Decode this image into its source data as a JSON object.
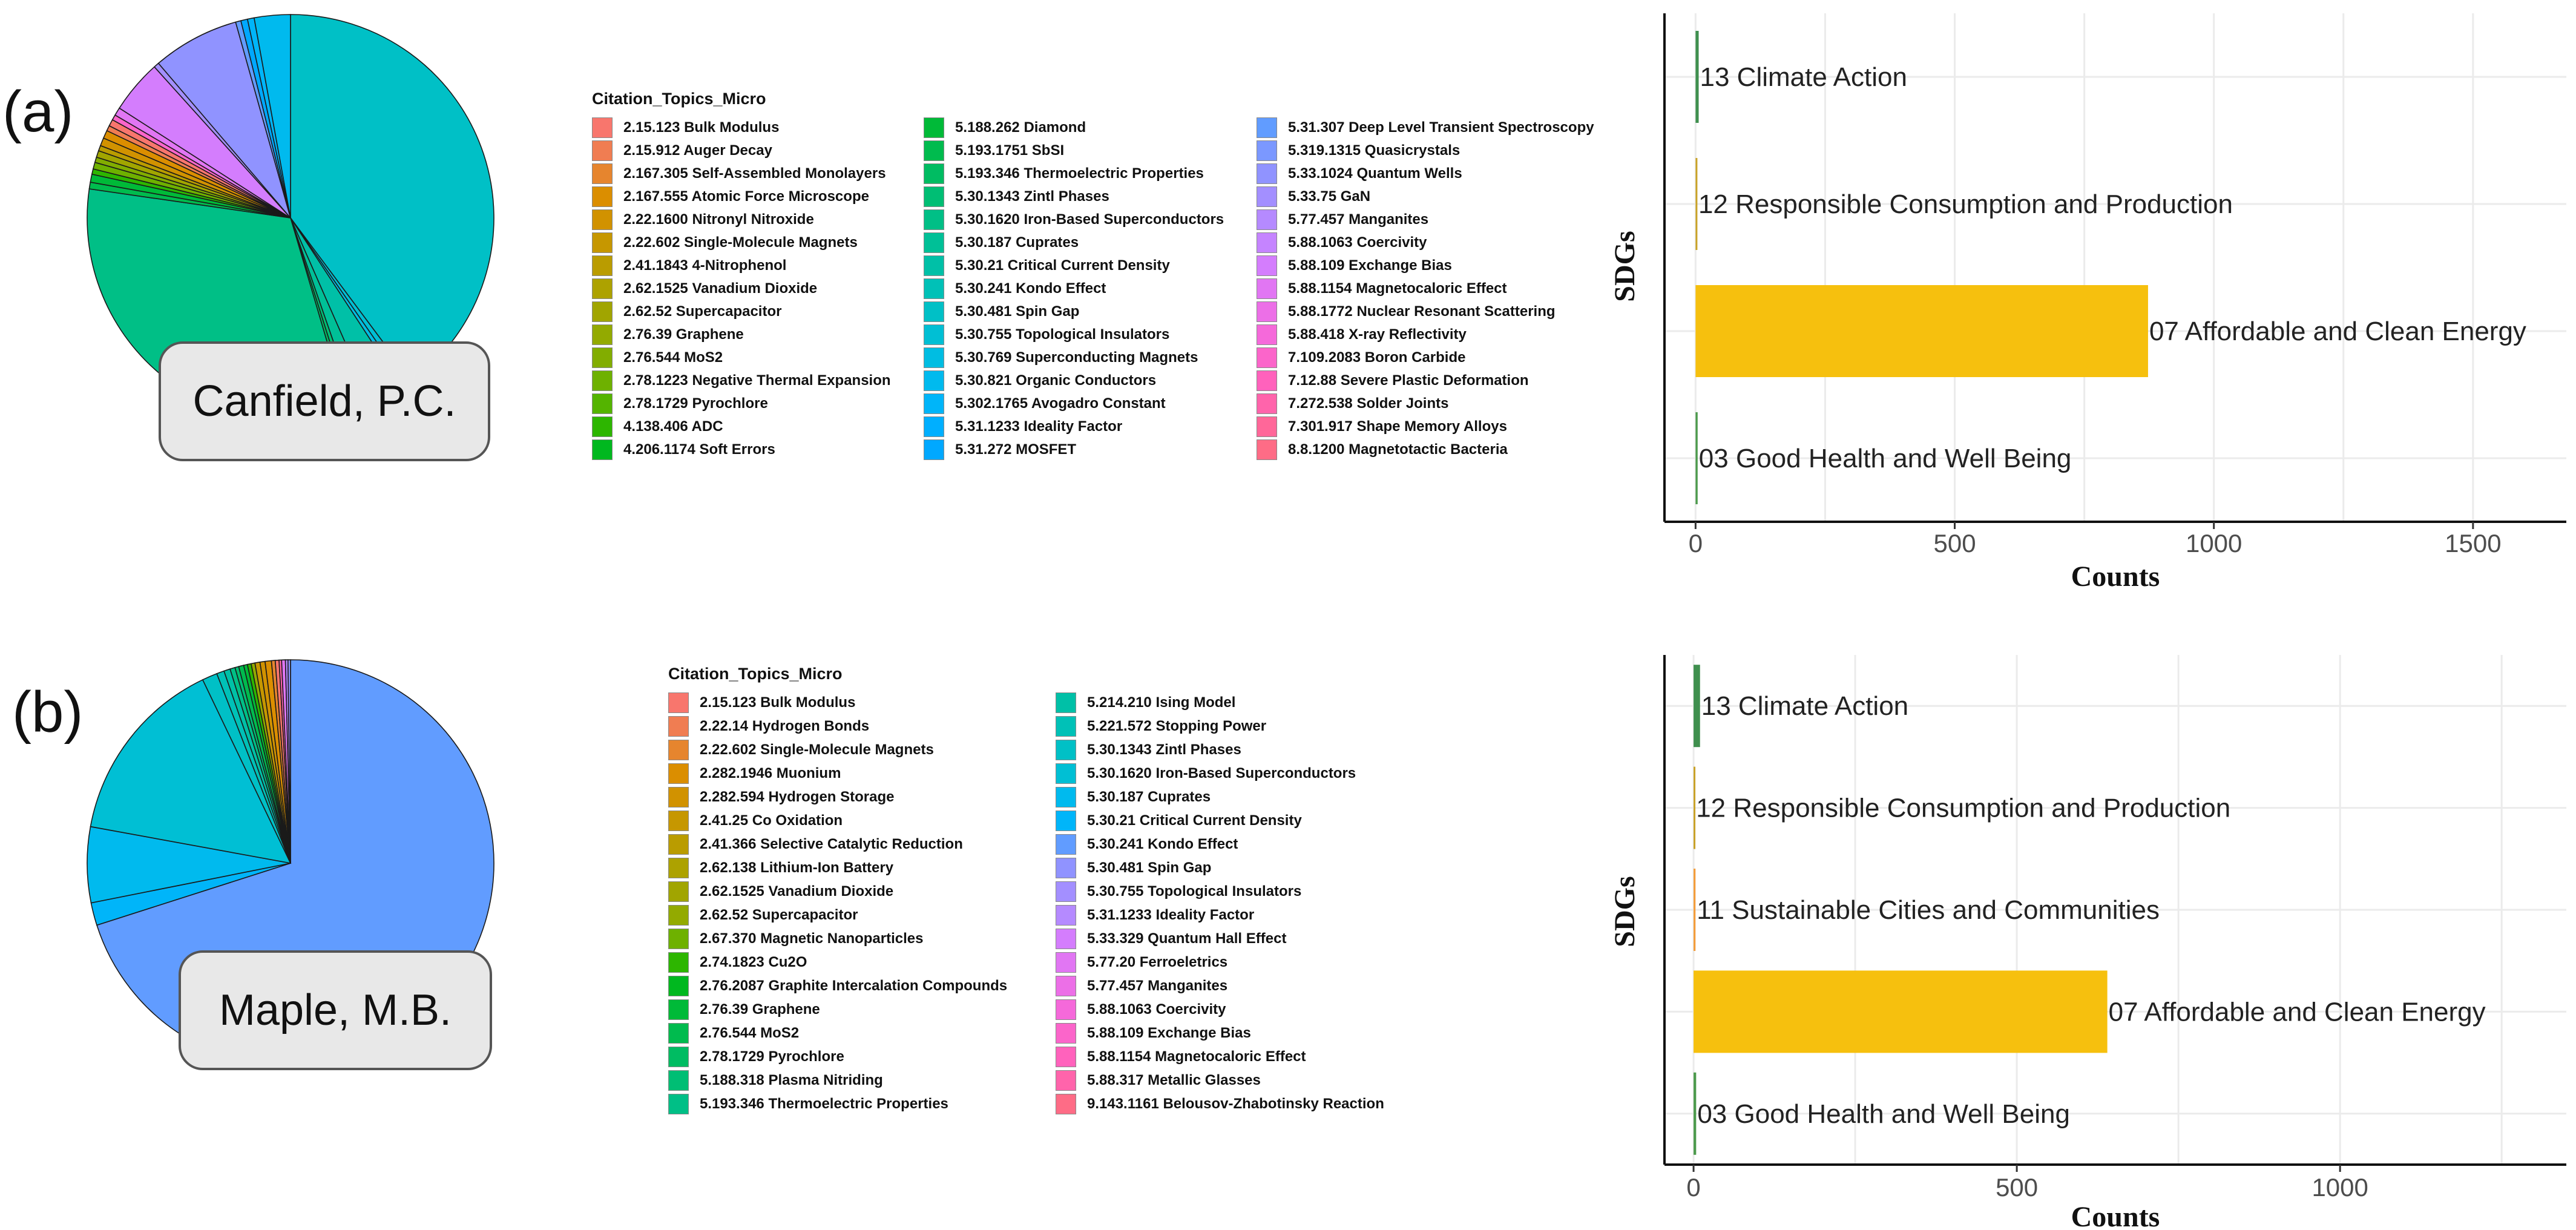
{
  "panels": [
    {
      "label": "(a)",
      "author": "Canfield, P.C.",
      "legend_title": "Citation_Topics_Micro",
      "legend_columns": [
        [
          {
            "label": "2.15.123 Bulk Modulus",
            "color": "#F8766D"
          },
          {
            "label": "2.15.912 Auger Decay",
            "color": "#F07D52"
          },
          {
            "label": "2.167.305 Self-Assembled Monolayers",
            "color": "#E6852E"
          },
          {
            "label": "2.167.555 Atomic Force Microscope",
            "color": "#DB8E00"
          },
          {
            "label": "2.22.1600 Nitronyl Nitroxide",
            "color": "#D19200"
          },
          {
            "label": "2.22.602 Single-Molecule Magnets",
            "color": "#C69700"
          },
          {
            "label": "2.41.1843 4-Nitrophenol",
            "color": "#BA9C00"
          },
          {
            "label": "2.62.1525 Vanadium Dioxide",
            "color": "#ADA200"
          },
          {
            "label": "2.62.52 Supercapacitor",
            "color": "#A1A500"
          },
          {
            "label": "2.76.39 Graphene",
            "color": "#93AA00"
          },
          {
            "label": "2.76.544 MoS2",
            "color": "#82AD00"
          },
          {
            "label": "2.78.1223 Negative Thermal Expansion",
            "color": "#6EB100"
          },
          {
            "label": "2.78.1729 Pyrochlore",
            "color": "#54B400"
          },
          {
            "label": "4.138.406 ADC",
            "color": "#2DB600"
          },
          {
            "label": "4.206.1174 Soft Errors",
            "color": "#00B81F"
          }
        ],
        [
          {
            "label": "5.188.262 Diamond",
            "color": "#00BA38"
          },
          {
            "label": "5.193.1751 SbSI",
            "color": "#00BB4E"
          },
          {
            "label": "5.193.346 Thermoelectric Properties",
            "color": "#00BC62"
          },
          {
            "label": "5.30.1343 Zintl Phases",
            "color": "#00BE74"
          },
          {
            "label": "5.30.1620 Iron-Based Superconductors",
            "color": "#00BF86"
          },
          {
            "label": "5.30.187 Cuprates",
            "color": "#00C097"
          },
          {
            "label": "5.30.21 Critical Current Density",
            "color": "#00C0A7"
          },
          {
            "label": "5.30.241 Kondo Effect",
            "color": "#00C1B7"
          },
          {
            "label": "5.30.481 Spin Gap",
            "color": "#00C0C6"
          },
          {
            "label": "5.30.755 Topological Insulators",
            "color": "#00BFD4"
          },
          {
            "label": "5.30.769 Superconducting Magnets",
            "color": "#00BDE2"
          },
          {
            "label": "5.30.821 Organic Conductors",
            "color": "#00BAEE"
          },
          {
            "label": "5.302.1765 Avogadro Constant",
            "color": "#00B5F9"
          },
          {
            "label": "5.31.1233 Ideality Factor",
            "color": "#00AFFF"
          },
          {
            "label": "5.31.272 MOSFET",
            "color": "#00A8FF"
          }
        ],
        [
          {
            "label": "5.31.307 Deep Level Transient Spectroscopy",
            "color": "#619CFF"
          },
          {
            "label": "5.319.1315 Quasicrystals",
            "color": "#7B98FF"
          },
          {
            "label": "5.33.1024 Quantum Wells",
            "color": "#9093FF"
          },
          {
            "label": "5.33.75 GaN",
            "color": "#A38FFF"
          },
          {
            "label": "5.77.457 Manganites",
            "color": "#B58AFF"
          },
          {
            "label": "5.88.1063 Coercivity",
            "color": "#C584FF"
          },
          {
            "label": "5.88.109 Exchange Bias",
            "color": "#D47DFD"
          },
          {
            "label": "5.88.1154 Magnetocaloric Effect",
            "color": "#E176F3"
          },
          {
            "label": "5.88.1772 Nuclear Resonant Scattering",
            "color": "#EC6FE7"
          },
          {
            "label": "5.88.418 X-ray Reflectivity",
            "color": "#F569DA"
          },
          {
            "label": "7.109.2083 Boron Carbide",
            "color": "#FB65CA"
          },
          {
            "label": "7.12.88 Severe Plastic Deformation",
            "color": "#FF62BC"
          },
          {
            "label": "7.272.538 Solder Joints",
            "color": "#FF64AB"
          },
          {
            "label": "7.301.917 Shape Memory Alloys",
            "color": "#FF6799"
          },
          {
            "label": "8.8.1200 Magnetotactic Bacteria",
            "color": "#FE6C86"
          }
        ]
      ],
      "pie_slices": [
        {
          "color": "#00C0C6",
          "value": 0.375
        },
        {
          "color": "#00BFD4",
          "value": 0.005
        },
        {
          "color": "#00BDE2",
          "value": 0.004
        },
        {
          "color": "#00C0A7",
          "value": 0.025
        },
        {
          "color": "#00C097",
          "value": 0.012
        },
        {
          "color": "#00BE74",
          "value": 0.004
        },
        {
          "color": "#00BC62",
          "value": 0.003
        },
        {
          "color": "#00BF86",
          "value": 0.3
        },
        {
          "color": "#00BB4E",
          "value": 0.005
        },
        {
          "color": "#00BA38",
          "value": 0.006
        },
        {
          "color": "#2DB600",
          "value": 0.004
        },
        {
          "color": "#6EB100",
          "value": 0.005
        },
        {
          "color": "#82AD00",
          "value": 0.004
        },
        {
          "color": "#A1A500",
          "value": 0.005
        },
        {
          "color": "#BA9C00",
          "value": 0.004
        },
        {
          "color": "#D19200",
          "value": 0.006
        },
        {
          "color": "#DB8E00",
          "value": 0.006
        },
        {
          "color": "#F07D52",
          "value": 0.004
        },
        {
          "color": "#F8766D",
          "value": 0.005
        },
        {
          "color": "#FB65CA",
          "value": 0.004
        },
        {
          "color": "#E176F3",
          "value": 0.006
        },
        {
          "color": "#D47DFD",
          "value": 0.04
        },
        {
          "color": "#A38FFF",
          "value": 0.004
        },
        {
          "color": "#9093FF",
          "value": 0.065
        },
        {
          "color": "#619CFF",
          "value": 0.004
        },
        {
          "color": "#00A8FF",
          "value": 0.005
        },
        {
          "color": "#00B5F9",
          "value": 0.005
        },
        {
          "color": "#00BAEE",
          "value": 0.027
        }
      ],
      "sdg_chart": {
        "ylabel": "SDGs",
        "xlabel": "Counts",
        "xlim": [
          -60,
          1680
        ],
        "ticks": [
          0,
          500,
          1000,
          1500
        ],
        "tick_labels": [
          "0",
          "500",
          "1000",
          "1500"
        ],
        "bars": [
          {
            "label": "13 Climate Action",
            "value": 6,
            "color": "#3F8F4E"
          },
          {
            "label": "12 Responsible Consumption and Production",
            "value": 3,
            "color": "#C9A227"
          },
          {
            "label": "07 Affordable and Clean Energy",
            "value": 873,
            "color": "#F6C00E"
          },
          {
            "label": "03 Good Health and Well Being",
            "value": 4,
            "color": "#4C9A4C"
          }
        ]
      }
    },
    {
      "label": "(b)",
      "author": "Maple, M.B.",
      "legend_title": "Citation_Topics_Micro",
      "legend_columns": [
        [
          {
            "label": "2.15.123 Bulk Modulus",
            "color": "#F8766D"
          },
          {
            "label": "2.22.14 Hydrogen Bonds",
            "color": "#F07D52"
          },
          {
            "label": "2.22.602 Single-Molecule Magnets",
            "color": "#E6852E"
          },
          {
            "label": "2.282.1946 Muonium",
            "color": "#DB8E00"
          },
          {
            "label": "2.282.594 Hydrogen Storage",
            "color": "#D19200"
          },
          {
            "label": "2.41.25 Co Oxidation",
            "color": "#C69700"
          },
          {
            "label": "2.41.366 Selective Catalytic Reduction",
            "color": "#BA9C00"
          },
          {
            "label": "2.62.138 Lithium-Ion Battery",
            "color": "#ADA200"
          },
          {
            "label": "2.62.1525 Vanadium Dioxide",
            "color": "#A1A500"
          },
          {
            "label": "2.62.52 Supercapacitor",
            "color": "#93AA00"
          },
          {
            "label": "2.67.370 Magnetic Nanoparticles",
            "color": "#6EB100"
          },
          {
            "label": "2.74.1823 Cu2O",
            "color": "#2DB600"
          },
          {
            "label": "2.76.2087 Graphite Intercalation Compounds",
            "color": "#00B81F"
          },
          {
            "label": "2.76.39 Graphene",
            "color": "#00BA38"
          },
          {
            "label": "2.76.544 MoS2",
            "color": "#00BB4E"
          },
          {
            "label": "2.78.1729 Pyrochlore",
            "color": "#00BC62"
          },
          {
            "label": "5.188.318 Plasma Nitriding",
            "color": "#00BE74"
          },
          {
            "label": "5.193.346 Thermoelectric Properties",
            "color": "#00BF86"
          }
        ],
        [
          {
            "label": "5.214.210 Ising Model",
            "color": "#00C0A7"
          },
          {
            "label": "5.221.572 Stopping Power",
            "color": "#00C1B7"
          },
          {
            "label": "5.30.1343 Zintl Phases",
            "color": "#00C0C6"
          },
          {
            "label": "5.30.1620 Iron-Based Superconductors",
            "color": "#00BFD4"
          },
          {
            "label": "5.30.187 Cuprates",
            "color": "#00BAEE"
          },
          {
            "label": "5.30.21 Critical Current Density",
            "color": "#00B5F9"
          },
          {
            "label": "5.30.241 Kondo Effect",
            "color": "#619CFF"
          },
          {
            "label": "5.30.481 Spin Gap",
            "color": "#9093FF"
          },
          {
            "label": "5.30.755 Topological Insulators",
            "color": "#A38FFF"
          },
          {
            "label": "5.31.1233 Ideality Factor",
            "color": "#B58AFF"
          },
          {
            "label": "5.33.329 Quantum Hall Effect",
            "color": "#D47DFD"
          },
          {
            "label": "5.77.20 Ferroeletrics",
            "color": "#E176F3"
          },
          {
            "label": "5.77.457 Manganites",
            "color": "#EC6FE7"
          },
          {
            "label": "5.88.1063 Coercivity",
            "color": "#F569DA"
          },
          {
            "label": "5.88.109 Exchange Bias",
            "color": "#FB65CA"
          },
          {
            "label": "5.88.1154 Magnetocaloric Effect",
            "color": "#FF62BC"
          },
          {
            "label": "5.88.317 Metallic Glasses",
            "color": "#FF64AB"
          },
          {
            "label": "9.143.1161 Belousov-Zhabotinsky Reaction",
            "color": "#FE6C86"
          }
        ]
      ],
      "pie_slices": [
        {
          "color": "#619CFF",
          "value": 0.7
        },
        {
          "color": "#00B5F9",
          "value": 0.018
        },
        {
          "color": "#00BAEE",
          "value": 0.06
        },
        {
          "color": "#00BFD4",
          "value": 0.15
        },
        {
          "color": "#00C0C6",
          "value": 0.012
        },
        {
          "color": "#00C1B7",
          "value": 0.006
        },
        {
          "color": "#00C0A7",
          "value": 0.005
        },
        {
          "color": "#00BF86",
          "value": 0.004
        },
        {
          "color": "#00BE74",
          "value": 0.003
        },
        {
          "color": "#00BB4E",
          "value": 0.004
        },
        {
          "color": "#00BA38",
          "value": 0.003
        },
        {
          "color": "#2DB600",
          "value": 0.003
        },
        {
          "color": "#93AA00",
          "value": 0.003
        },
        {
          "color": "#C69700",
          "value": 0.004
        },
        {
          "color": "#D19200",
          "value": 0.004
        },
        {
          "color": "#DB8E00",
          "value": 0.005
        },
        {
          "color": "#E6852E",
          "value": 0.003
        },
        {
          "color": "#F8766D",
          "value": 0.003
        },
        {
          "color": "#FF64AB",
          "value": 0.002
        },
        {
          "color": "#E176F3",
          "value": 0.003
        },
        {
          "color": "#B58AFF",
          "value": 0.002
        },
        {
          "color": "#9093FF",
          "value": 0.002
        }
      ],
      "sdg_chart": {
        "ylabel": "SDGs",
        "xlabel": "Counts",
        "xlim": [
          -45,
          1350
        ],
        "ticks": [
          0,
          500,
          1000
        ],
        "tick_labels": [
          "0",
          "500",
          "1000"
        ],
        "bars": [
          {
            "label": "13 Climate Action",
            "value": 10,
            "color": "#3F8F4E"
          },
          {
            "label": "12 Responsible Consumption and Production",
            "value": 2,
            "color": "#C9A227"
          },
          {
            "label": "11 Sustainable Cities and Communities",
            "value": 3,
            "color": "#F39C3A"
          },
          {
            "label": "07 Affordable and Clean Energy",
            "value": 640,
            "color": "#F6C00E"
          },
          {
            "label": "03 Good Health and Well Being",
            "value": 4,
            "color": "#4C9A4C"
          }
        ]
      }
    }
  ]
}
